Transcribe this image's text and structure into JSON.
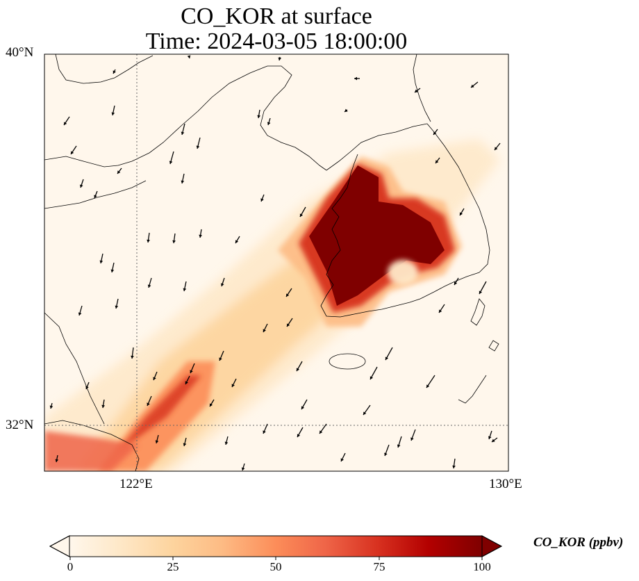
{
  "title": {
    "line1": "CO_KOR at surface",
    "line2": "Time: 2024-03-05 18:00:00"
  },
  "axes": {
    "lat_labels": [
      "40°N",
      "32°N"
    ],
    "lon_labels": [
      "122°E",
      "130°E"
    ]
  },
  "colorbar": {
    "title": "CO_KOR (ppbv)",
    "ticks": [
      "0",
      "25",
      "50",
      "75",
      "100"
    ],
    "min": 0,
    "max": 100,
    "colormap": "OrRd",
    "extend": "both"
  },
  "map": {
    "lon_range": [
      120,
      130
    ],
    "lat_range": [
      31,
      40
    ],
    "gridlines": {
      "lon": [
        122
      ],
      "lat": [
        32
      ]
    },
    "background_color": "#fff7ec",
    "coastline_color": "#000000",
    "vector_color": "#000000"
  }
}
